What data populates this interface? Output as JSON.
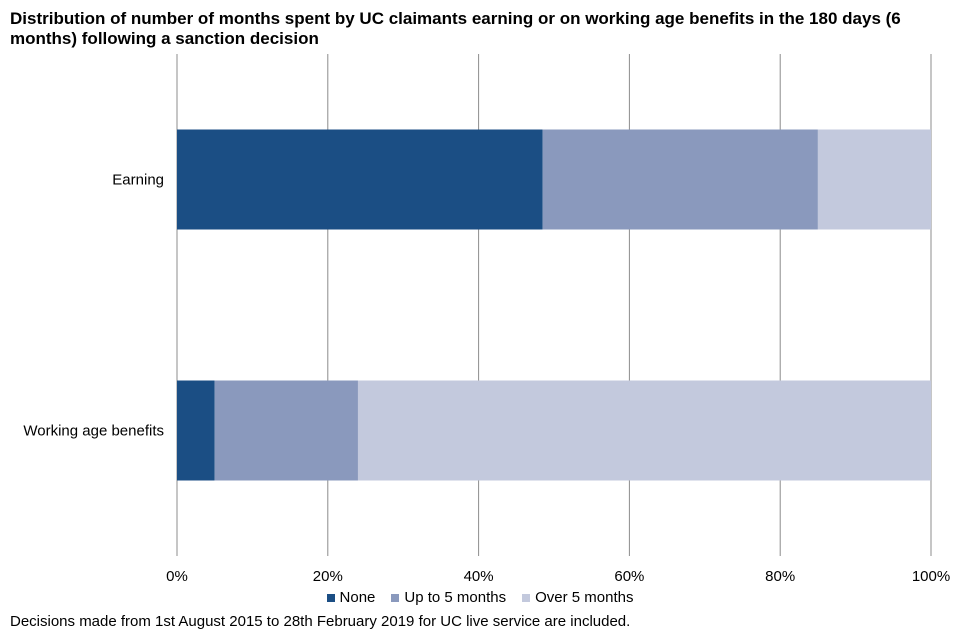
{
  "chart_data": {
    "type": "bar",
    "orientation": "horizontal",
    "stacked": true,
    "title": "Distribution of number of months spent by UC claimants earning or on working age benefits in the 180 days (6 months) following a sanction decision",
    "categories": [
      "Earning",
      "Working age benefits"
    ],
    "series": [
      {
        "name": "None",
        "color": "#1b4e84",
        "values": [
          48.5,
          5
        ]
      },
      {
        "name": "Up to 5 months",
        "color": "#8a99bd",
        "values": [
          36.5,
          19
        ]
      },
      {
        "name": "Over 5 months",
        "color": "#c3c9dd",
        "values": [
          15,
          76
        ]
      }
    ],
    "x_ticks": [
      "0%",
      "20%",
      "40%",
      "60%",
      "80%",
      "100%"
    ],
    "xlim": [
      0,
      100
    ],
    "grid": true,
    "legend_position": "bottom",
    "footnote": "Decisions made from 1st August 2015 to 28th February 2019 for UC live service are included."
  }
}
